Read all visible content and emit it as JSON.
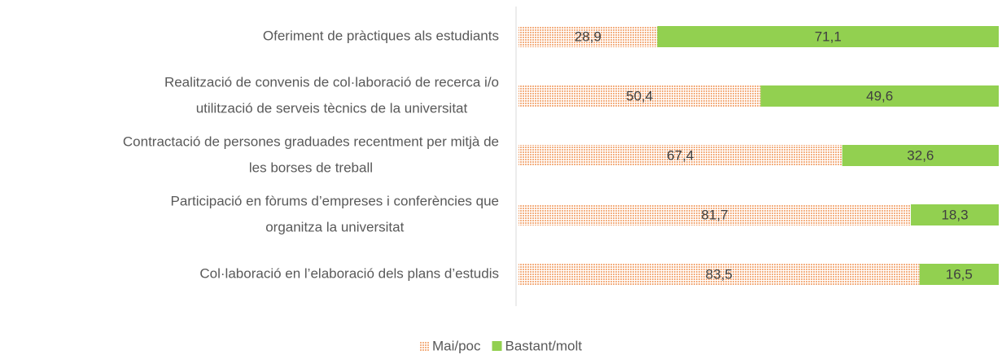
{
  "chart_data": {
    "type": "stacked-bar-horizontal",
    "categories": [
      [
        "Oferiment de pràctiques als estudiants"
      ],
      [
        "Realització de convenis de col·laboració de recerca i/o",
        "utilització de serveis tècnics de la universitat"
      ],
      [
        "Contractació de persones graduades recentment per mitjà de",
        "les borses de treball"
      ],
      [
        "Participació en fòrums d’empreses i conferències que",
        "organitza la universitat"
      ],
      [
        "Col·laboració en l’elaboració dels plans d’estudis"
      ]
    ],
    "series": [
      {
        "name": "Mai/poc",
        "color": "#ed7d31",
        "pattern": "dots",
        "values": [
          28.9,
          50.4,
          67.4,
          81.7,
          83.5
        ],
        "value_labels": [
          "28,9",
          "50,4",
          "67,4",
          "81,7",
          "83,5"
        ]
      },
      {
        "name": "Bastant/molt",
        "color": "#92d050",
        "values": [
          71.1,
          49.6,
          32.6,
          18.3,
          16.5
        ],
        "value_labels": [
          "71,1",
          "49,6",
          "32,6",
          "18,3",
          "16,5"
        ]
      }
    ],
    "legend": "bottom"
  }
}
